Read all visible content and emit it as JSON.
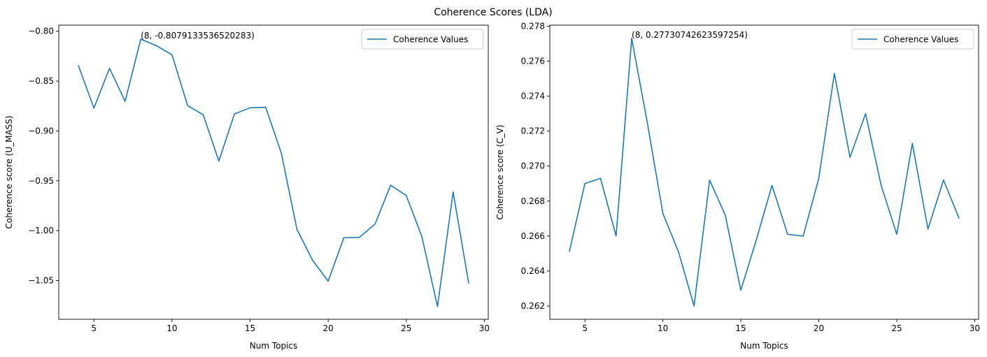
{
  "suptitle": "Coherence Scores (LDA)",
  "chart_data": [
    {
      "type": "line",
      "xlabel": "Num Topics",
      "ylabel": "Coherence score (U_MASS)",
      "xlim": [
        2.75,
        30.25
      ],
      "ylim": [
        -1.0889,
        -0.7939
      ],
      "xticks": [
        5,
        10,
        15,
        20,
        25,
        30
      ],
      "yticks": [
        -1.05,
        -1.0,
        -0.95,
        -0.9,
        -0.85,
        -0.8
      ],
      "ytick_labels": [
        "−1.05",
        "−1.00",
        "−0.95",
        "−0.90",
        "−0.85",
        "−0.80"
      ],
      "legend": "top-right",
      "annotation": {
        "text": "(8, -0.8079133536520283)",
        "x": 8,
        "y": -0.8079133536520283
      },
      "series": [
        {
          "name": "Coherence Values",
          "color": "#1f77b4",
          "x": [
            4,
            5,
            6,
            7,
            8,
            9,
            10,
            11,
            12,
            13,
            14,
            15,
            16,
            17,
            18,
            19,
            20,
            21,
            22,
            23,
            24,
            25,
            26,
            27,
            28,
            29
          ],
          "y": [
            -0.8341,
            -0.8771,
            -0.8372,
            -0.8703,
            -0.8079133536520283,
            -0.8145,
            -0.8236,
            -0.8746,
            -0.8838,
            -0.9302,
            -0.883,
            -0.8768,
            -0.8763,
            -0.9222,
            -0.9986,
            -1.0297,
            -1.0507,
            -1.0072,
            -1.0067,
            -0.9934,
            -0.9544,
            -0.9648,
            -1.006,
            -1.0762,
            -0.9613,
            -1.053
          ]
        }
      ]
    },
    {
      "type": "line",
      "xlabel": "Num Topics",
      "ylabel": "Coherence score (C_V)",
      "xlim": [
        2.75,
        30.25
      ],
      "ylim": [
        0.26124,
        0.27806
      ],
      "xticks": [
        5,
        10,
        15,
        20,
        25,
        30
      ],
      "yticks": [
        0.262,
        0.264,
        0.266,
        0.268,
        0.27,
        0.272,
        0.274,
        0.276,
        0.278
      ],
      "ytick_labels": [
        "0.262",
        "0.264",
        "0.266",
        "0.268",
        "0.270",
        "0.272",
        "0.274",
        "0.276",
        "0.278"
      ],
      "legend": "top-right",
      "annotation": {
        "text": "(8, 0.27730742623597254)",
        "x": 8,
        "y": 0.27730742623597254
      },
      "series": [
        {
          "name": "Coherence Values",
          "color": "#1f77b4",
          "x": [
            4,
            5,
            6,
            7,
            8,
            9,
            10,
            11,
            12,
            13,
            14,
            15,
            16,
            17,
            18,
            19,
            20,
            21,
            22,
            23,
            24,
            25,
            26,
            27,
            28,
            29
          ],
          "y": [
            0.2651,
            0.269,
            0.2693,
            0.266,
            0.27730742623597254,
            0.2725,
            0.2673,
            0.2651,
            0.262,
            0.2692,
            0.2672,
            0.2629,
            0.2658,
            0.2689,
            0.2661,
            0.266,
            0.2693,
            0.2753,
            0.2705,
            0.273,
            0.2689,
            0.2661,
            0.2713,
            0.2664,
            0.2692,
            0.267
          ]
        }
      ]
    }
  ]
}
